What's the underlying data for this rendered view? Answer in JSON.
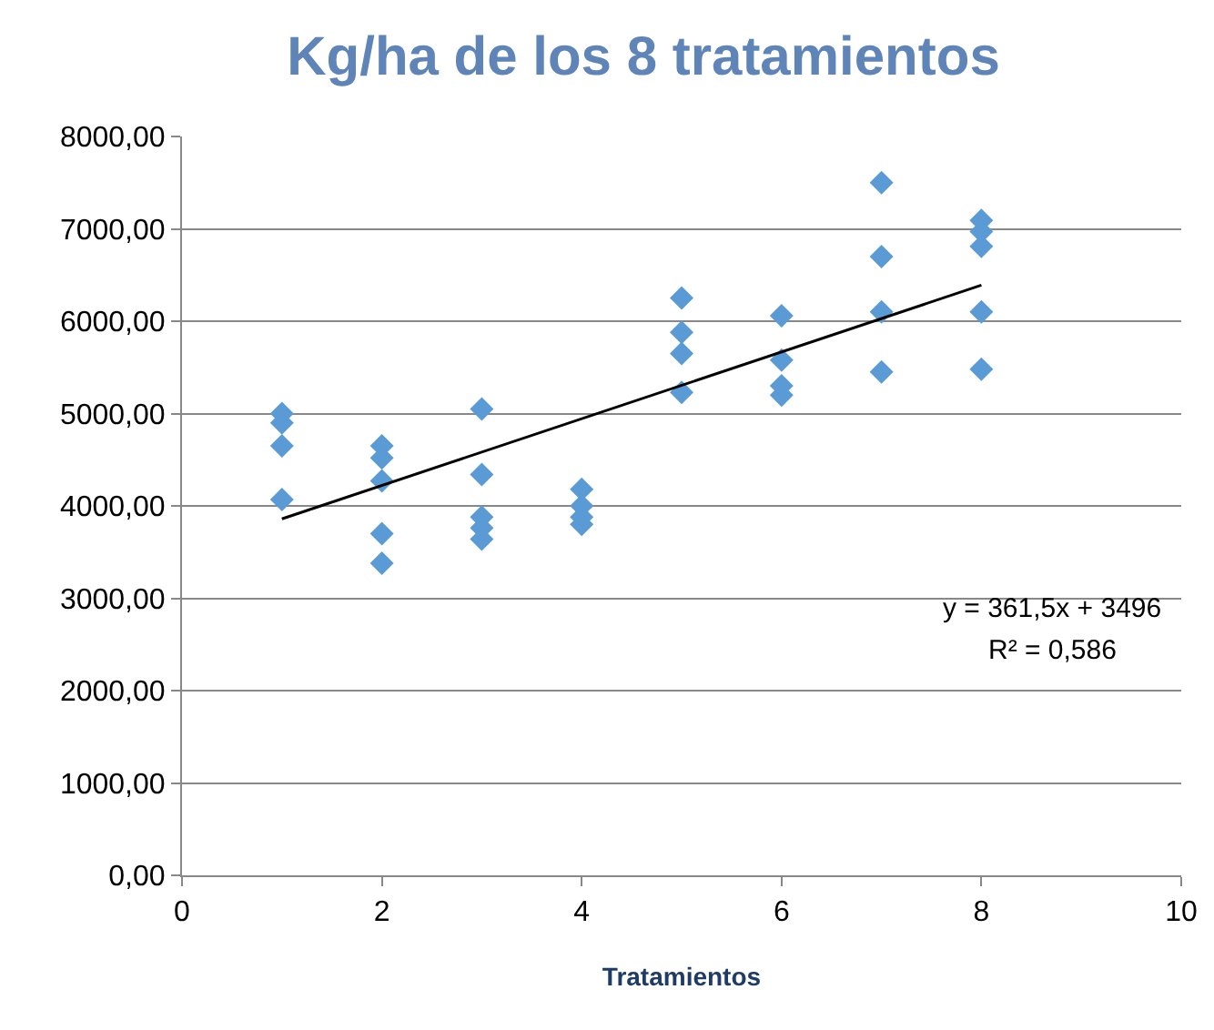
{
  "chart_data": {
    "type": "scatter",
    "title": "Kg/ha de los 8 tratamientos",
    "xlabel": "Tratamientos",
    "series": [
      {
        "type": "scatter",
        "color": "#5b9bd5",
        "marker": "diamond",
        "x": [
          1,
          1,
          1,
          1,
          2,
          2,
          2,
          2,
          2,
          3,
          3,
          3,
          3,
          3,
          4,
          4,
          4,
          4,
          5,
          5,
          5,
          5,
          6,
          6,
          6,
          6,
          7,
          7,
          7,
          7,
          8,
          8,
          8,
          8,
          8
        ],
        "values": [
          5000,
          4900,
          4650,
          4070,
          4650,
          4520,
          4270,
          3700,
          3380,
          5050,
          4340,
          3880,
          3760,
          3640,
          4180,
          4000,
          3880,
          3800,
          6250,
          5880,
          5650,
          5230,
          6060,
          5580,
          5300,
          5200,
          7500,
          6700,
          6100,
          5450,
          7090,
          6970,
          6810,
          6100,
          5480
        ]
      },
      {
        "type": "line",
        "color": "#000000",
        "marker": "none",
        "line_style": "solid",
        "x": [
          1,
          8
        ],
        "values": [
          3860,
          6390
        ]
      }
    ],
    "annotations": [
      "y = 361,5x + 3496",
      "R² = 0,586"
    ],
    "xlim": [
      0,
      10
    ],
    "xticks": [
      0,
      2,
      4,
      6,
      8,
      10
    ],
    "ylim": [
      0,
      8000
    ],
    "yticks": [
      {
        "value": 0,
        "label": "0,00"
      },
      {
        "value": 1000,
        "label": "1000,00"
      },
      {
        "value": 2000,
        "label": "2000,00"
      },
      {
        "value": 3000,
        "label": "3000,00"
      },
      {
        "value": 4000,
        "label": "4000,00"
      },
      {
        "value": 5000,
        "label": "5000,00"
      },
      {
        "value": 6000,
        "label": "6000,00"
      },
      {
        "value": 7000,
        "label": "7000,00"
      },
      {
        "value": 8000,
        "label": "8000,00"
      }
    ],
    "grid": "y"
  }
}
